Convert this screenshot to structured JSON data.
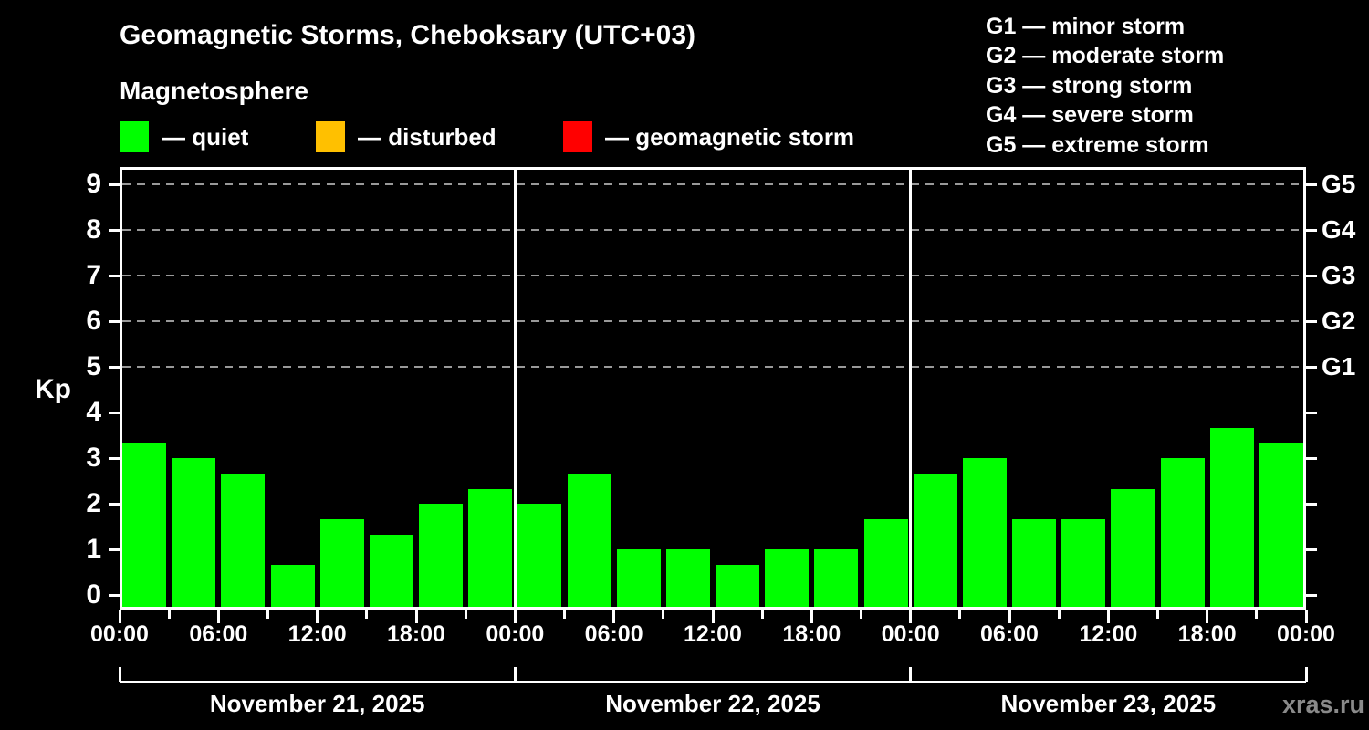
{
  "header": {
    "title": "Geomagnetic Storms, Cheboksary (UTC+03)",
    "subtitle": "Magnetosphere"
  },
  "legend": {
    "items": [
      {
        "key": "quiet",
        "label": "— quiet",
        "color": "#00ff00"
      },
      {
        "key": "disturbed",
        "label": "— disturbed",
        "color": "#ffc000"
      },
      {
        "key": "storm",
        "label": "— geomagnetic storm",
        "color": "#ff0000"
      }
    ]
  },
  "storm_scale_legend": {
    "items": [
      "G1 — minor storm",
      "G2 — moderate storm",
      "G3 — strong storm",
      "G4 — severe storm",
      "G5 — extreme storm"
    ]
  },
  "watermark": "xras.ru",
  "chart_data": {
    "type": "bar",
    "title": "Geomagnetic Storms, Cheboksary (UTC+03)",
    "subtitle": "Magnetosphere",
    "ylabel": "Kp",
    "ylim": [
      0,
      9
    ],
    "y_ticks": [
      0,
      1,
      2,
      3,
      4,
      5,
      6,
      7,
      8,
      9
    ],
    "grid": "dashed horizontal lines at Kp 5-9 only",
    "grid_color": "#999999",
    "axis_color": "#ffffff",
    "background_color": "#000000",
    "bar_color_quiet": "#00ff00",
    "bar_color_disturbed": "#ffc000",
    "bar_color_storm": "#ff0000",
    "interval_hours": 3,
    "right_axis_labels": [
      {
        "label": "G1",
        "kp": 5
      },
      {
        "label": "G2",
        "kp": 6
      },
      {
        "label": "G3",
        "kp": 7
      },
      {
        "label": "G4",
        "kp": 8
      },
      {
        "label": "G5",
        "kp": 9
      }
    ],
    "x_tick_labels": [
      "00:00",
      "06:00",
      "12:00",
      "18:00",
      "00:00",
      "06:00",
      "12:00",
      "18:00",
      "00:00",
      "06:00",
      "12:00",
      "18:00",
      "00:00"
    ],
    "days": [
      {
        "date": "November 21, 2025",
        "values": [
          3.33,
          3.0,
          2.67,
          0.67,
          1.67,
          1.33,
          2.0,
          2.33
        ]
      },
      {
        "date": "November 22, 2025",
        "values": [
          2.0,
          2.67,
          1.0,
          1.0,
          0.67,
          1.0,
          1.0,
          1.67
        ]
      },
      {
        "date": "November 23, 2025",
        "values": [
          2.67,
          3.0,
          1.67,
          1.67,
          2.33,
          3.0,
          3.67,
          3.33
        ]
      }
    ]
  }
}
